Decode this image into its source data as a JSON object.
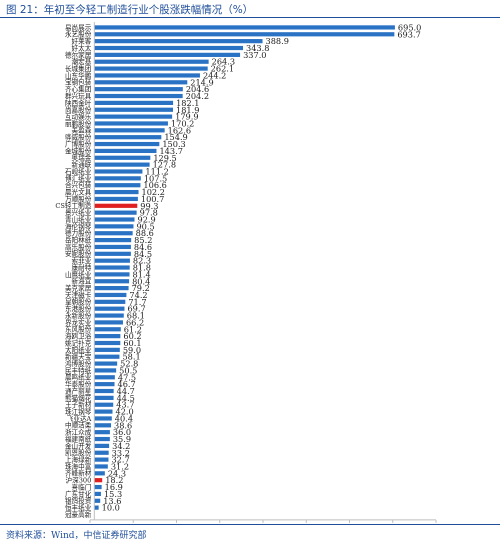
{
  "figure": {
    "title": "图 21：年初至今轻工制造行业个股涨跌幅情况（%）",
    "source": "资料来源：Wind，中信证券研究部"
  },
  "chart_data": {
    "type": "bar",
    "orientation": "horizontal",
    "title": "",
    "xlabel": "",
    "ylabel": "",
    "xlim": [
      -10.0,
      790.0
    ],
    "xticks": [
      -10.0,
      90.0,
      190.0,
      290.0,
      390.0,
      490.0,
      590.0,
      690.0,
      790.0
    ],
    "xtick_labels": [
      "-10.0",
      "90.0",
      "190.0",
      "290.0",
      "390.0",
      "490.0",
      "590.0",
      "690.0",
      "790.0"
    ],
    "grid": false,
    "colors": {
      "default": "#2a72c4",
      "highlight": "#e02020",
      "axis": "#bfbfbf"
    },
    "highlight_categories": [
      "CS轻工制造",
      "沪深300"
    ],
    "categories": [
      "易尚展示",
      "永艺股份",
      "好莱客",
      "好太太",
      "德尔家居",
      "潮宏基",
      "长城集团",
      "山东华鹏",
      "宝钢包装",
      "齐心集团",
      "群兴玩具",
      "陕西金叶",
      "尚嘉股份",
      "互动娱乐",
      "丽鹏股份",
      "美盈森",
      "骅威股份",
      "广博股份",
      "金城股份",
      "奥瑞金",
      "新通联",
      "石岘纸业",
      "博汇纸业",
      "合兴包装",
      "晨光文具",
      "万顺股份",
      "CS轻工制造",
      "景兴纸业",
      "青山纸业",
      "海伦钢琴",
      "德力股份",
      "岳阳林纸",
      "高乐股份",
      "安妮股份",
      "索菲亚",
      "康耐特",
      "山鹰纸业",
      "新海宜",
      "美克家居",
      "天津磁卡",
      "皇朝股份",
      "东港股份",
      "永新股份",
      "界龙实业",
      "东风股份",
      "海鸥卫浴",
      "姚记扑克",
      "太阳纸业",
      "新疆天宝",
      "鸿博股份",
      "民丰特纸",
      "晨鸣纸业",
      "华泰股份",
      "通产丽星",
      "熊猫烟花",
      "王子新材",
      "珠江钢琴",
      "飞亚达A",
      "中顺洁柔",
      "浙江众成",
      "福建南纸",
      "金山开发",
      "凯恩股份",
      "上海绿新",
      "珠海中富",
      "齐峰新材",
      "沪深300",
      "喜临门",
      "广东甘化",
      "银鸽投资",
      "恒丰纸业",
      "冠豪高新"
    ],
    "values": [
      695.0,
      693.7,
      388.9,
      343.8,
      337.0,
      264.3,
      262.1,
      244.2,
      214.9,
      204.6,
      204.2,
      182.1,
      181.9,
      179.9,
      170.2,
      162.6,
      154.9,
      150.3,
      143.7,
      129.5,
      127.8,
      111.2,
      107.5,
      106.6,
      102.2,
      100.7,
      99.3,
      97.8,
      92.9,
      90.5,
      88.6,
      85.2,
      84.6,
      84.5,
      82.3,
      81.8,
      81.4,
      80.4,
      79.2,
      74.2,
      71.7,
      69.7,
      68.1,
      66.2,
      61.2,
      60.2,
      60.1,
      59.0,
      58.1,
      52.8,
      50.5,
      47.5,
      46.7,
      44.7,
      44.5,
      43.7,
      42.0,
      40.4,
      38.6,
      36.0,
      35.9,
      34.2,
      33.2,
      32.7,
      31.2,
      24.3,
      18.2,
      16.9,
      15.3,
      13.6,
      10.0,
      0.0
    ],
    "value_labels": [
      "695.0",
      "693.7",
      "388.9",
      "343.8",
      "337.0",
      "264.3",
      "262.1",
      "244.2",
      "214.9",
      "204.6",
      "204.2",
      "182.1",
      "181.9",
      "179.9",
      "170.2",
      "162.6",
      "154.9",
      "150.3",
      "143.7",
      "129.5",
      "127.8",
      "111.2",
      "107.5",
      "106.6",
      "102.2",
      "100.7",
      "99.3",
      "97.8",
      "92.9",
      "90.5",
      "88.6",
      "85.2",
      "84.6",
      "84.5",
      "82.3",
      "81.8",
      "81.4",
      "80.4",
      "79.2",
      "74.2",
      "71.7",
      "69.7",
      "68.1",
      "66.2",
      "61.2",
      "60.2",
      "60.1",
      "59.0",
      "58.1",
      "52.8",
      "50.5",
      "47.5",
      "46.7",
      "44.7",
      "44.5",
      "43.7",
      "42.0",
      "40.4",
      "38.6",
      "36.0",
      "35.9",
      "34.2",
      "33.2",
      "32.7",
      "31.2",
      "24.3",
      "18.2",
      "16.9",
      "15.3",
      "13.6",
      "10.0",
      ""
    ]
  }
}
